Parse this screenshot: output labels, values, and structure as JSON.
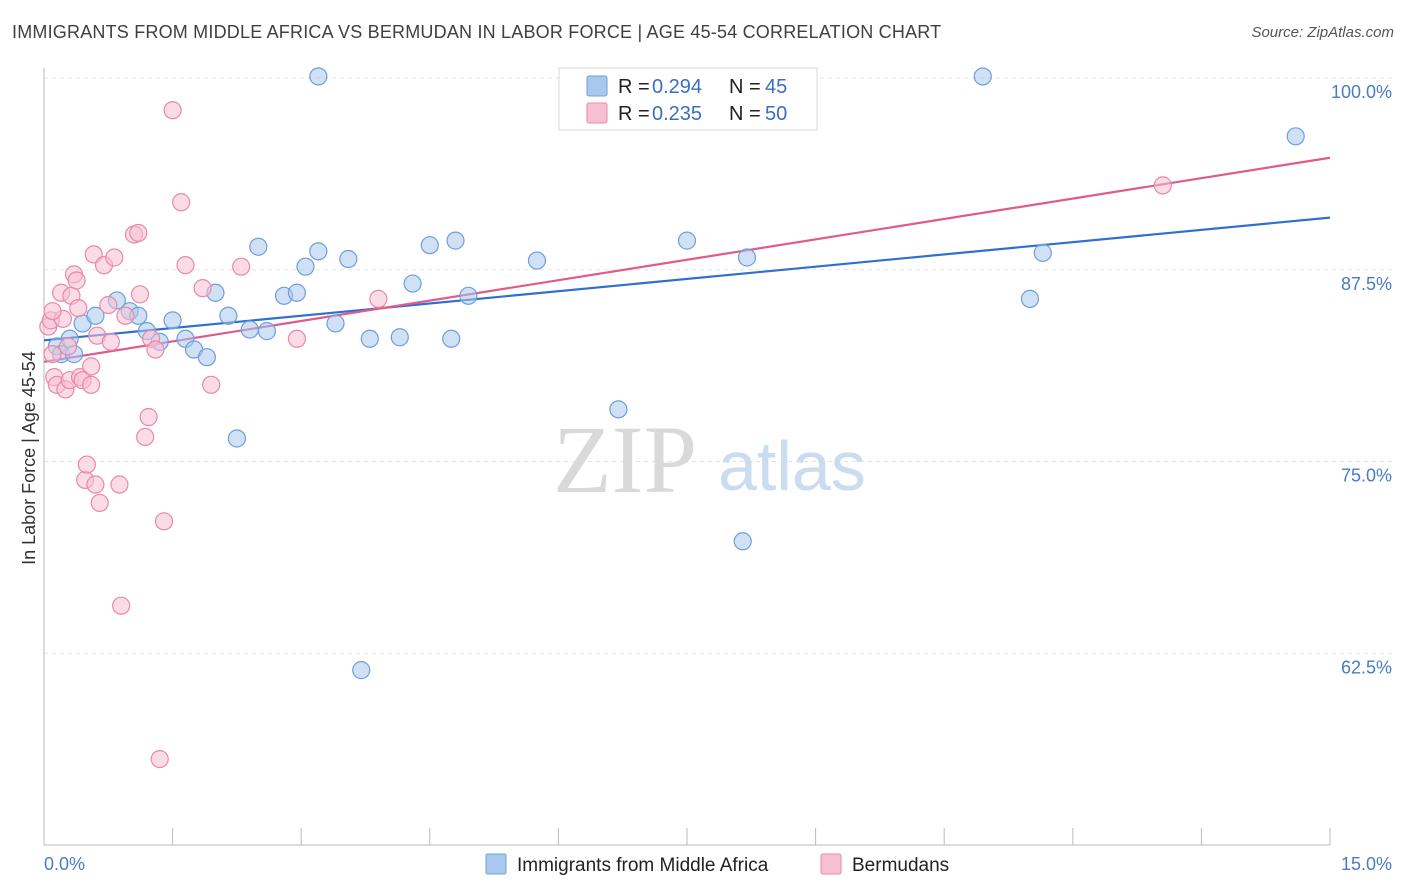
{
  "title": "IMMIGRANTS FROM MIDDLE AFRICA VS BERMUDAN IN LABOR FORCE | AGE 45-54 CORRELATION CHART",
  "source": "Source: ZipAtlas.com",
  "watermark": {
    "zip": "ZIP",
    "atlas": "atlas"
  },
  "chart_data": {
    "type": "scatter",
    "title": "IMMIGRANTS FROM MIDDLE AFRICA VS BERMUDAN IN LABOR FORCE | AGE 45-54 CORRELATION CHART",
    "xlabel": "",
    "ylabel": "In Labor Force | Age 45-54",
    "xlim": [
      0,
      15
    ],
    "ylim": [
      50,
      100
    ],
    "x_tick_labels": [
      "0.0%",
      "15.0%"
    ],
    "y_ticks": [
      62.5,
      75.0,
      87.5,
      100.0
    ],
    "y_tick_labels": [
      "62.5%",
      "75.0%",
      "87.5%",
      "100.0%"
    ],
    "legend_position": "top-center",
    "series": [
      {
        "name": "Immigrants from Middle Africa",
        "color": "#a9c8ee",
        "stroke": "#6e9fd8",
        "line_color": "#2e6fd0",
        "R": "0.294",
        "N": "45",
        "trend": {
          "x0": 0.0,
          "y0": 82.9,
          "x1": 15.0,
          "y1": 90.9
        },
        "points": [
          [
            0.15,
            82.5
          ],
          [
            0.2,
            82.0
          ],
          [
            0.3,
            83.0
          ],
          [
            0.35,
            82.0
          ],
          [
            0.45,
            84.0
          ],
          [
            0.6,
            84.5
          ],
          [
            0.85,
            85.5
          ],
          [
            1.0,
            84.8
          ],
          [
            1.1,
            84.5
          ],
          [
            1.2,
            83.5
          ],
          [
            1.35,
            82.8
          ],
          [
            1.5,
            84.2
          ],
          [
            1.65,
            83.0
          ],
          [
            1.75,
            82.3
          ],
          [
            1.9,
            81.8
          ],
          [
            2.0,
            86.0
          ],
          [
            2.15,
            84.5
          ],
          [
            2.25,
            76.5
          ],
          [
            2.4,
            83.6
          ],
          [
            2.5,
            89.0
          ],
          [
            2.6,
            83.5
          ],
          [
            2.8,
            85.8
          ],
          [
            2.95,
            86.0
          ],
          [
            3.05,
            87.7
          ],
          [
            3.2,
            88.7
          ],
          [
            3.2,
            100.1
          ],
          [
            3.4,
            84.0
          ],
          [
            3.55,
            88.2
          ],
          [
            3.7,
            61.4
          ],
          [
            3.8,
            83.0
          ],
          [
            4.15,
            83.1
          ],
          [
            4.3,
            86.6
          ],
          [
            4.5,
            89.1
          ],
          [
            4.75,
            83.0
          ],
          [
            4.8,
            89.4
          ],
          [
            4.95,
            85.8
          ],
          [
            5.75,
            88.1
          ],
          [
            6.7,
            78.4
          ],
          [
            7.5,
            89.4
          ],
          [
            8.15,
            69.8
          ],
          [
            8.2,
            88.3
          ],
          [
            10.95,
            100.1
          ],
          [
            11.5,
            85.6
          ],
          [
            11.65,
            88.6
          ],
          [
            14.6,
            96.2
          ]
        ]
      },
      {
        "name": "Bermudans",
        "color": "#f7c0d2",
        "stroke": "#e889a8",
        "line_color": "#e05a8c",
        "R": "0.235",
        "N": "50",
        "trend": {
          "x0": 0.0,
          "y0": 81.5,
          "x1": 15.0,
          "y1": 94.8
        },
        "points": [
          [
            0.05,
            83.8
          ],
          [
            0.08,
            84.2
          ],
          [
            0.1,
            82.0
          ],
          [
            0.12,
            80.5
          ],
          [
            0.15,
            80.0
          ],
          [
            0.2,
            86.0
          ],
          [
            0.22,
            84.3
          ],
          [
            0.25,
            79.7
          ],
          [
            0.28,
            82.5
          ],
          [
            0.3,
            80.3
          ],
          [
            0.32,
            85.8
          ],
          [
            0.35,
            87.2
          ],
          [
            0.38,
            86.8
          ],
          [
            0.4,
            85.0
          ],
          [
            0.42,
            80.5
          ],
          [
            0.45,
            80.3
          ],
          [
            0.48,
            73.8
          ],
          [
            0.5,
            74.8
          ],
          [
            0.55,
            80.0
          ],
          [
            0.58,
            88.5
          ],
          [
            0.6,
            73.5
          ],
          [
            0.62,
            83.2
          ],
          [
            0.65,
            72.3
          ],
          [
            0.7,
            87.8
          ],
          [
            0.75,
            85.2
          ],
          [
            0.78,
            82.8
          ],
          [
            0.82,
            88.3
          ],
          [
            0.88,
            73.5
          ],
          [
            0.9,
            65.6
          ],
          [
            0.95,
            84.5
          ],
          [
            1.05,
            89.8
          ],
          [
            1.1,
            89.9
          ],
          [
            1.12,
            85.9
          ],
          [
            1.18,
            76.6
          ],
          [
            1.22,
            77.9
          ],
          [
            1.25,
            83.0
          ],
          [
            1.3,
            82.3
          ],
          [
            1.35,
            55.6
          ],
          [
            1.4,
            71.1
          ],
          [
            1.5,
            97.9
          ],
          [
            1.6,
            91.9
          ],
          [
            1.65,
            87.8
          ],
          [
            1.85,
            86.3
          ],
          [
            1.95,
            80.0
          ],
          [
            2.3,
            87.7
          ],
          [
            2.95,
            83.0
          ],
          [
            3.9,
            85.6
          ],
          [
            13.05,
            93.0
          ],
          [
            0.1,
            84.8
          ],
          [
            0.55,
            81.2
          ]
        ]
      }
    ]
  }
}
